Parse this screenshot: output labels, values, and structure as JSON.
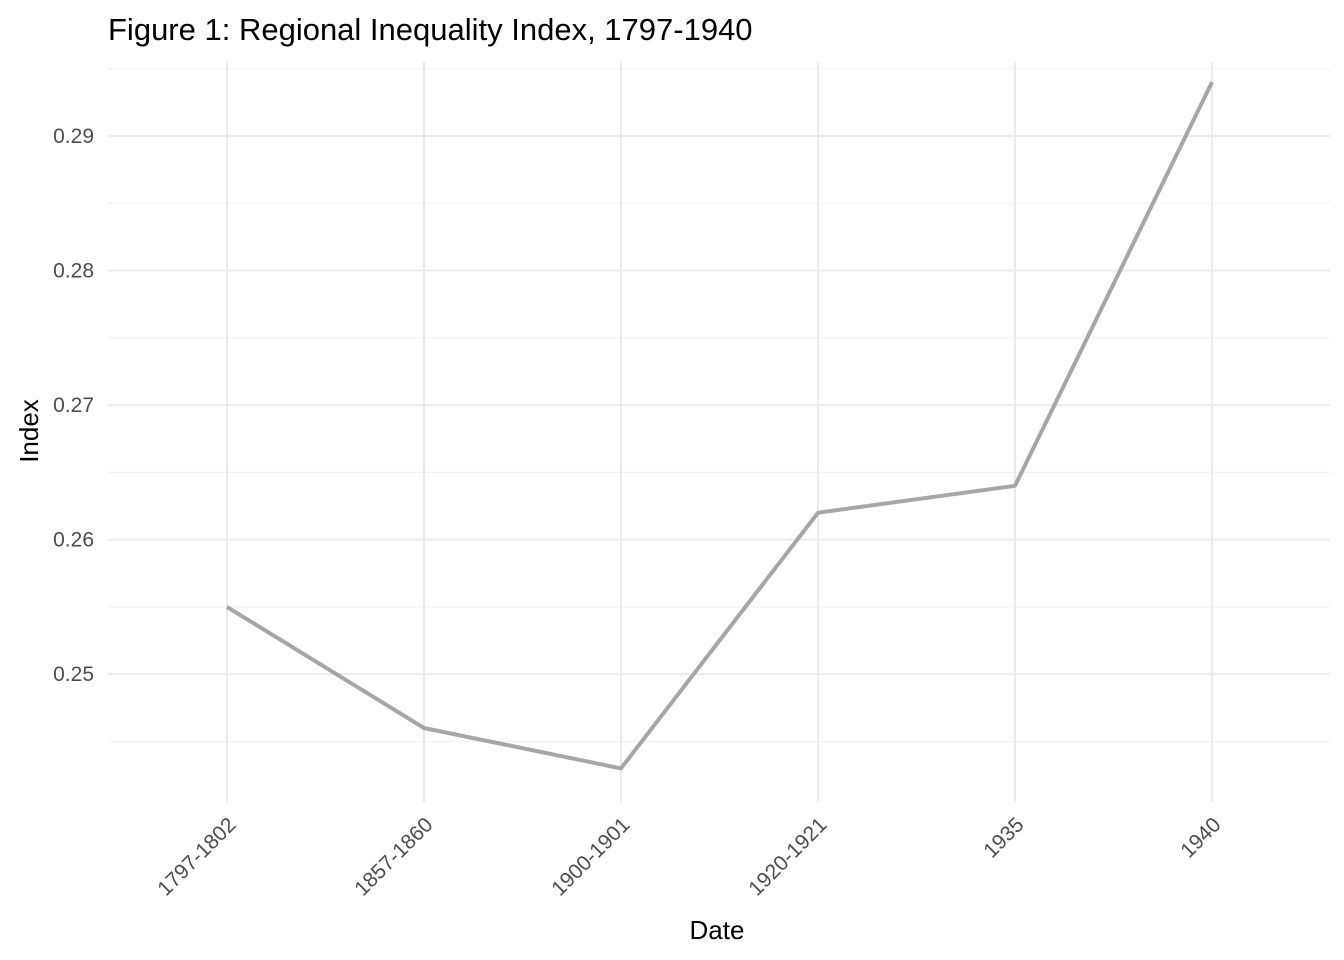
{
  "chart_data": {
    "type": "line",
    "title": "Figure 1: Regional Inequality Index, 1797-1940",
    "xlabel": "Date",
    "ylabel": "Index",
    "categories": [
      "1797-1802",
      "1857-1860",
      "1900-1901",
      "1920-1921",
      "1935",
      "1940"
    ],
    "values": [
      0.255,
      0.246,
      0.243,
      0.262,
      0.264,
      0.294
    ],
    "y_ticks": [
      "0.25",
      "0.26",
      "0.27",
      "0.28",
      "0.29"
    ],
    "ylim": [
      0.2405,
      0.2955
    ],
    "grid": true,
    "line_color": "#a6a6a6",
    "legend": "none"
  }
}
